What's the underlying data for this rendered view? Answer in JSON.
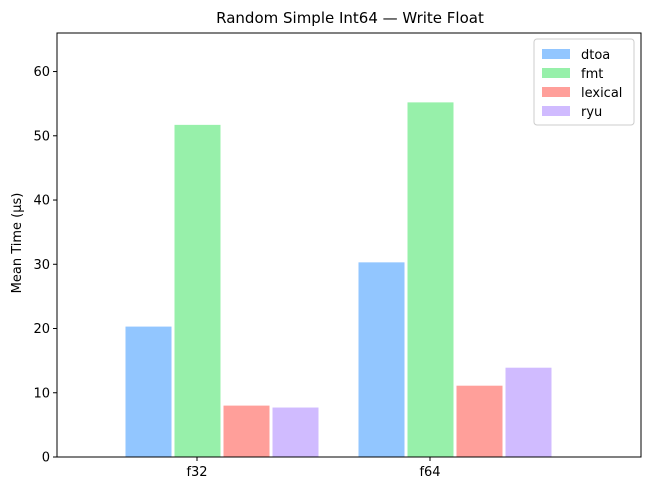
{
  "chart_data": {
    "type": "bar",
    "title": "Random Simple Int64 — Write Float",
    "xlabel": "",
    "ylabel": "Mean Time (µs)",
    "categories": [
      "f32",
      "f64"
    ],
    "ylim": [
      0,
      66
    ],
    "yticks": [
      "0",
      "10",
      "20",
      "30",
      "40",
      "50",
      "60"
    ],
    "grid": false,
    "legend_position": "top-right",
    "series": [
      {
        "name": "dtoa",
        "color": "#92c6ff",
        "values": [
          20.3,
          30.3
        ]
      },
      {
        "name": "fmt",
        "color": "#97f0aa",
        "values": [
          51.7,
          55.2
        ]
      },
      {
        "name": "lexical",
        "color": "#ff9f9a",
        "values": [
          8.0,
          11.1
        ]
      },
      {
        "name": "ryu",
        "color": "#d0bbff",
        "values": [
          7.7,
          13.9
        ]
      }
    ]
  }
}
